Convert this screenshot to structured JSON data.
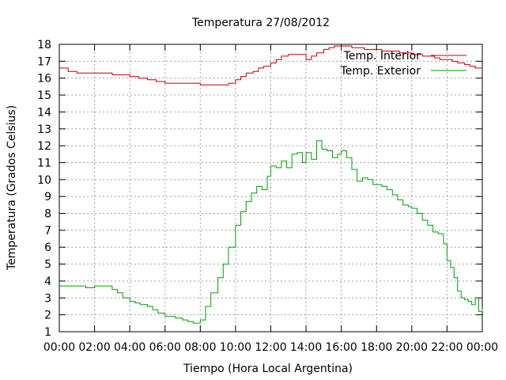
{
  "chart_data": {
    "type": "line",
    "title": "Temperatura 27/08/2012",
    "xlabel": "Tiempo (Hora Local Argentina)",
    "ylabel": "Temperatura (Grados Celsius)",
    "xlim": [
      0,
      24
    ],
    "ylim": [
      1,
      18
    ],
    "x_tick_labels": [
      "00:00",
      "02:00",
      "04:00",
      "06:00",
      "08:00",
      "10:00",
      "12:00",
      "14:00",
      "16:00",
      "18:00",
      "20:00",
      "22:00",
      "00:00"
    ],
    "y_ticks": [
      1,
      2,
      3,
      4,
      5,
      6,
      7,
      8,
      9,
      10,
      11,
      12,
      13,
      14,
      15,
      16,
      17,
      18
    ],
    "grid": true,
    "legend_position": "top-right",
    "series": [
      {
        "name": "Temp. Interior",
        "color": "#c00000",
        "x": [
          0,
          0.3,
          0.5,
          1,
          1.5,
          2,
          2.5,
          3,
          3.5,
          4,
          4.5,
          5,
          5.5,
          6,
          6.5,
          7,
          7.5,
          8,
          8.5,
          9,
          9.3,
          9.6,
          10,
          10.3,
          10.6,
          11,
          11.3,
          11.6,
          12,
          12.3,
          12.6,
          13,
          13.3,
          13.6,
          14,
          14.3,
          14.6,
          15,
          15.3,
          15.6,
          16,
          16.3,
          16.6,
          17,
          17.3,
          17.6,
          18,
          18.3,
          18.6,
          19,
          19.3,
          19.6,
          20,
          20.3,
          20.6,
          21,
          21.3,
          21.6,
          22,
          22.3,
          22.6,
          23,
          23.3,
          23.6,
          24
        ],
        "y": [
          16.6,
          16.6,
          16.4,
          16.3,
          16.3,
          16.3,
          16.3,
          16.2,
          16.2,
          16.1,
          16,
          15.9,
          15.8,
          15.7,
          15.7,
          15.7,
          15.7,
          15.6,
          15.6,
          15.6,
          15.6,
          15.7,
          15.9,
          16.1,
          16.3,
          16.4,
          16.6,
          16.7,
          16.9,
          17.1,
          17.3,
          17.4,
          17.4,
          17.4,
          17.1,
          17.3,
          17.5,
          17.7,
          17.8,
          17.9,
          17.9,
          17.9,
          17.8,
          17.8,
          17.7,
          17.7,
          17.7,
          17.6,
          17.6,
          17.6,
          17.5,
          17.5,
          17.4,
          17.4,
          17.3,
          17.3,
          17.2,
          17.1,
          17.1,
          17.0,
          16.9,
          16.8,
          16.7,
          16.6,
          16.6
        ]
      },
      {
        "name": "Temp. Exterior",
        "color": "#00a000",
        "x": [
          0,
          0.5,
          1,
          1.5,
          2,
          2.5,
          3,
          3.3,
          3.6,
          4,
          4.3,
          4.6,
          5,
          5.3,
          5.6,
          6,
          6.3,
          6.6,
          7,
          7.3,
          7.6,
          8,
          8.3,
          8.6,
          9,
          9.3,
          9.6,
          10,
          10.3,
          10.6,
          10.9,
          11.2,
          11.5,
          11.8,
          12,
          12.3,
          12.6,
          12.9,
          13.2,
          13.5,
          13.8,
          14,
          14.3,
          14.6,
          14.9,
          15.2,
          15.5,
          15.8,
          16,
          16.3,
          16.6,
          16.9,
          17.2,
          17.5,
          17.8,
          18,
          18.3,
          18.6,
          18.9,
          19.2,
          19.5,
          19.8,
          20,
          20.3,
          20.6,
          20.9,
          21.2,
          21.5,
          21.8,
          22,
          22.2,
          22.4,
          22.6,
          22.8,
          23,
          23.2,
          23.4,
          23.6,
          23.8,
          24
        ],
        "y": [
          3.7,
          3.7,
          3.7,
          3.6,
          3.7,
          3.7,
          3.5,
          3.3,
          3.0,
          2.8,
          2.7,
          2.6,
          2.5,
          2.3,
          2.1,
          1.9,
          1.9,
          1.8,
          1.7,
          1.6,
          1.5,
          1.7,
          2.5,
          3.3,
          4.2,
          5.0,
          6.0,
          7.3,
          8.1,
          8.7,
          9.2,
          9.6,
          9.4,
          10.2,
          10.8,
          10.7,
          11.1,
          10.7,
          11.5,
          11.6,
          11.0,
          11.6,
          11.2,
          12.3,
          11.8,
          11.7,
          11.3,
          11.5,
          11.7,
          11.3,
          10.6,
          9.9,
          10.1,
          10.0,
          9.7,
          9.7,
          9.6,
          9.4,
          9.1,
          8.8,
          8.5,
          8.4,
          8.3,
          8.0,
          7.6,
          7.3,
          6.9,
          6.8,
          6.2,
          5.2,
          4.8,
          4.2,
          3.4,
          3.0,
          2.9,
          2.8,
          2.6,
          3.0,
          2.2,
          2.4
        ]
      }
    ]
  }
}
